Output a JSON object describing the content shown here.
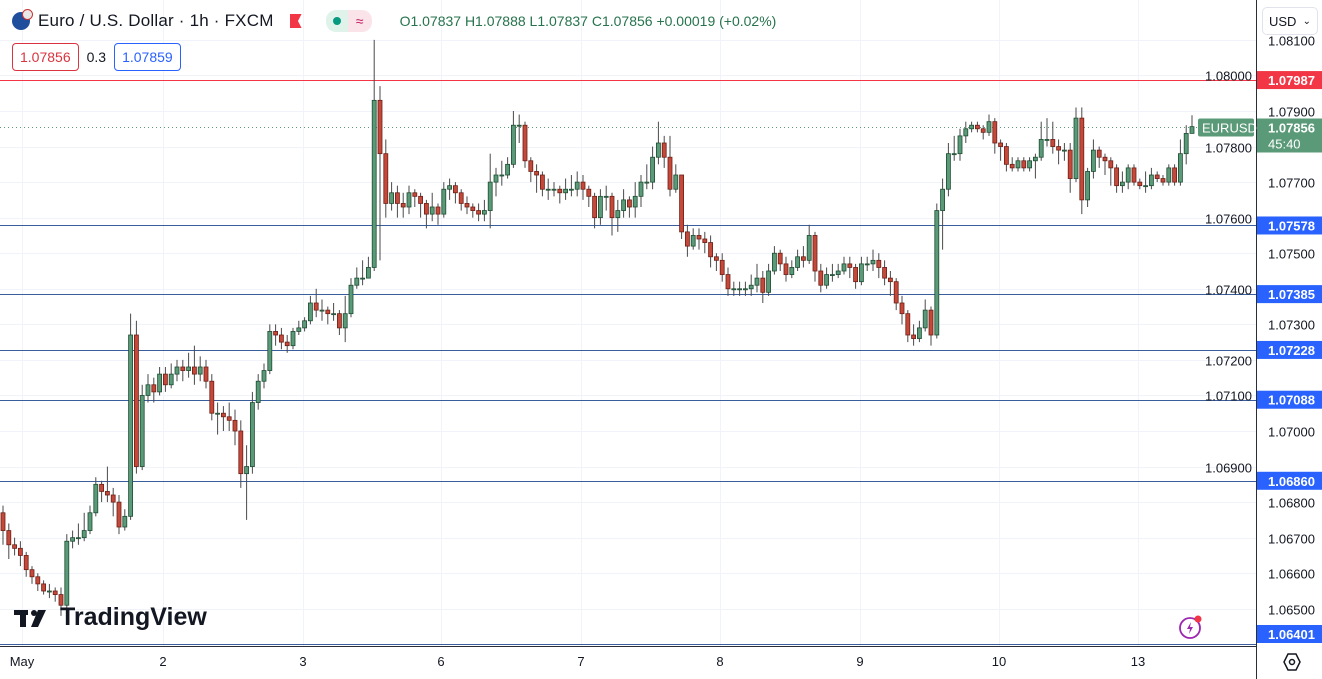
{
  "header": {
    "symbol_title": "Euro / U.S. Dollar · 1h · FXCM",
    "ohlc": "O1.07837 H1.07888 L1.07837 C1.07856 +0.00019 (+0.02%)",
    "market_status_icon": "market-open-dot",
    "indicator_icon": "approx-icon"
  },
  "quotes": {
    "sell": "1.07856",
    "spread": "0.3",
    "buy": "1.07859"
  },
  "currency_select": {
    "value": "USD"
  },
  "branding": {
    "logo_text": "TradingView"
  },
  "colors": {
    "up": "#5b9a78",
    "down": "#c4493a",
    "resistance": "#f23645",
    "support": "#2962ff",
    "last_price": "#5b9a78"
  },
  "chart_data": {
    "type": "candlestick",
    "symbol_label": "EURUSD",
    "last_price": "1.07856",
    "countdown": "45:40",
    "y_ticks": [
      "1.06500",
      "1.06600",
      "1.06700",
      "1.06800",
      "1.06900",
      "1.07000",
      "1.07100",
      "1.07200",
      "1.07300",
      "1.07400",
      "1.07500",
      "1.07600",
      "1.07700",
      "1.07800",
      "1.07900",
      "1.08000",
      "1.08100"
    ],
    "x_labels": [
      "May",
      "2",
      "3",
      "6",
      "7",
      "8",
      "9",
      "10",
      "13"
    ],
    "hlines": [
      {
        "price": "1.07987",
        "color": "#f23645"
      },
      {
        "price": "1.07578",
        "color": "#2962ff"
      },
      {
        "price": "1.07385",
        "color": "#2962ff"
      },
      {
        "price": "1.07228",
        "color": "#2962ff"
      },
      {
        "price": "1.07088",
        "color": "#2962ff"
      },
      {
        "price": "1.06860",
        "color": "#2962ff"
      },
      {
        "price": "1.06401",
        "color": "#2962ff"
      }
    ],
    "candles": [
      [
        1.0677,
        1.0679,
        1.0668,
        1.0672
      ],
      [
        1.0672,
        1.0674,
        1.0664,
        1.0668
      ],
      [
        1.0668,
        1.067,
        1.0665,
        1.0667
      ],
      [
        1.0667,
        1.0669,
        1.0662,
        1.0665
      ],
      [
        1.0665,
        1.0666,
        1.0659,
        1.0661
      ],
      [
        1.0661,
        1.0662,
        1.0657,
        1.0659
      ],
      [
        1.0659,
        1.066,
        1.0655,
        1.0657
      ],
      [
        1.0657,
        1.0658,
        1.0654,
        1.0655
      ],
      [
        1.0655,
        1.0657,
        1.0653,
        1.0655
      ],
      [
        1.0655,
        1.0656,
        1.0652,
        1.0654
      ],
      [
        1.0654,
        1.0656,
        1.0648,
        1.0651
      ],
      [
        1.0651,
        1.0671,
        1.065,
        1.0669
      ],
      [
        1.0669,
        1.0672,
        1.0667,
        1.067
      ],
      [
        1.067,
        1.0674,
        1.0668,
        1.067
      ],
      [
        1.067,
        1.0677,
        1.0669,
        1.0672
      ],
      [
        1.0672,
        1.0679,
        1.0671,
        1.0677
      ],
      [
        1.0677,
        1.0687,
        1.0676,
        1.0685
      ],
      [
        1.0685,
        1.0686,
        1.068,
        1.0683
      ],
      [
        1.0683,
        1.069,
        1.068,
        1.0682
      ],
      [
        1.0682,
        1.0684,
        1.0676,
        1.068
      ],
      [
        1.068,
        1.0682,
        1.0671,
        1.0673
      ],
      [
        1.0673,
        1.0678,
        1.0672,
        1.0676
      ],
      [
        1.0676,
        1.0733,
        1.0675,
        1.0727
      ],
      [
        1.0727,
        1.0731,
        1.0688,
        1.069
      ],
      [
        1.069,
        1.0713,
        1.0689,
        1.071
      ],
      [
        1.071,
        1.0716,
        1.0708,
        1.0713
      ],
      [
        1.0713,
        1.0715,
        1.0708,
        1.0711
      ],
      [
        1.0711,
        1.0718,
        1.071,
        1.0716
      ],
      [
        1.0716,
        1.0718,
        1.0711,
        1.0713
      ],
      [
        1.0713,
        1.0719,
        1.0712,
        1.0716
      ],
      [
        1.0716,
        1.072,
        1.0714,
        1.0718
      ],
      [
        1.0718,
        1.072,
        1.0714,
        1.0717
      ],
      [
        1.0717,
        1.0722,
        1.0715,
        1.0718
      ],
      [
        1.0718,
        1.0724,
        1.0713,
        1.0716
      ],
      [
        1.0716,
        1.0721,
        1.0714,
        1.0718
      ],
      [
        1.0718,
        1.072,
        1.0712,
        1.0714
      ],
      [
        1.0714,
        1.0716,
        1.0703,
        1.0705
      ],
      [
        1.0705,
        1.0708,
        1.0699,
        1.0705
      ],
      [
        1.0705,
        1.0707,
        1.07,
        1.0704
      ],
      [
        1.0704,
        1.0708,
        1.07,
        1.0703
      ],
      [
        1.0703,
        1.0706,
        1.0696,
        1.07
      ],
      [
        1.07,
        1.0703,
        1.0684,
        1.0688
      ],
      [
        1.0688,
        1.0696,
        1.0675,
        1.069
      ],
      [
        1.069,
        1.0711,
        1.0688,
        1.0708
      ],
      [
        1.0708,
        1.0716,
        1.0706,
        1.0714
      ],
      [
        1.0714,
        1.0719,
        1.0712,
        1.0717
      ],
      [
        1.0717,
        1.073,
        1.0716,
        1.0728
      ],
      [
        1.0728,
        1.073,
        1.0724,
        1.0727
      ],
      [
        1.0727,
        1.0729,
        1.0723,
        1.0725
      ],
      [
        1.0725,
        1.0727,
        1.0722,
        1.0724
      ],
      [
        1.0724,
        1.0729,
        1.0723,
        1.0728
      ],
      [
        1.0728,
        1.0731,
        1.0727,
        1.0729
      ],
      [
        1.0729,
        1.0732,
        1.0728,
        1.0731
      ],
      [
        1.0731,
        1.0738,
        1.073,
        1.0736
      ],
      [
        1.0736,
        1.074,
        1.0732,
        1.0734
      ],
      [
        1.0734,
        1.0737,
        1.0731,
        1.0734
      ],
      [
        1.0734,
        1.0735,
        1.073,
        1.0733
      ],
      [
        1.0733,
        1.0736,
        1.0731,
        1.0733
      ],
      [
        1.0733,
        1.0734,
        1.0727,
        1.0729
      ],
      [
        1.0729,
        1.0738,
        1.0725,
        1.0733
      ],
      [
        1.0733,
        1.0743,
        1.0732,
        1.0741
      ],
      [
        1.0741,
        1.0746,
        1.074,
        1.0743
      ],
      [
        1.0743,
        1.0748,
        1.0741,
        1.0743
      ],
      [
        1.0743,
        1.0749,
        1.0744,
        1.0746
      ],
      [
        1.0746,
        1.081,
        1.0745,
        1.0793
      ],
      [
        1.0793,
        1.0797,
        1.0748,
        1.0778
      ],
      [
        1.0778,
        1.0782,
        1.076,
        1.0764
      ],
      [
        1.0764,
        1.077,
        1.0762,
        1.0767
      ],
      [
        1.0767,
        1.0769,
        1.076,
        1.0764
      ],
      [
        1.0764,
        1.0767,
        1.076,
        1.0763
      ],
      [
        1.0763,
        1.0769,
        1.0761,
        1.0767
      ],
      [
        1.0767,
        1.0768,
        1.0763,
        1.0766
      ],
      [
        1.0766,
        1.0767,
        1.076,
        1.0764
      ],
      [
        1.0764,
        1.0765,
        1.0757,
        1.0761
      ],
      [
        1.0761,
        1.0767,
        1.0759,
        1.0763
      ],
      [
        1.0763,
        1.0764,
        1.0758,
        1.0761
      ],
      [
        1.0761,
        1.077,
        1.076,
        1.0768
      ],
      [
        1.0768,
        1.0771,
        1.0765,
        1.0769
      ],
      [
        1.0769,
        1.077,
        1.0764,
        1.0767
      ],
      [
        1.0767,
        1.0768,
        1.0762,
        1.0764
      ],
      [
        1.0764,
        1.0766,
        1.0761,
        1.0763
      ],
      [
        1.0763,
        1.0764,
        1.076,
        1.0762
      ],
      [
        1.0762,
        1.0764,
        1.0759,
        1.0761
      ],
      [
        1.0761,
        1.0765,
        1.0759,
        1.0762
      ],
      [
        1.0762,
        1.0778,
        1.0757,
        1.077
      ],
      [
        1.077,
        1.0774,
        1.0766,
        1.0772
      ],
      [
        1.0772,
        1.0776,
        1.0769,
        1.0772
      ],
      [
        1.0772,
        1.0777,
        1.0771,
        1.0775
      ],
      [
        1.0775,
        1.079,
        1.0774,
        1.0786
      ],
      [
        1.0786,
        1.0789,
        1.0781,
        1.0786
      ],
      [
        1.0786,
        1.0787,
        1.0774,
        1.0776
      ],
      [
        1.0776,
        1.0777,
        1.077,
        1.0773
      ],
      [
        1.0773,
        1.0775,
        1.0767,
        1.0772
      ],
      [
        1.0772,
        1.0773,
        1.0766,
        1.0768
      ],
      [
        1.0768,
        1.0771,
        1.0765,
        1.0768
      ],
      [
        1.0768,
        1.077,
        1.0766,
        1.0768
      ],
      [
        1.0768,
        1.0769,
        1.0764,
        1.0767
      ],
      [
        1.0767,
        1.0771,
        1.0765,
        1.0768
      ],
      [
        1.0768,
        1.0772,
        1.0766,
        1.0768
      ],
      [
        1.0768,
        1.0773,
        1.0766,
        1.077
      ],
      [
        1.077,
        1.0772,
        1.0765,
        1.0768
      ],
      [
        1.0768,
        1.0769,
        1.0763,
        1.0766
      ],
      [
        1.0766,
        1.0767,
        1.0757,
        1.076
      ],
      [
        1.076,
        1.0768,
        1.0758,
        1.0766
      ],
      [
        1.0766,
        1.0769,
        1.0762,
        1.0766
      ],
      [
        1.0766,
        1.0767,
        1.0755,
        1.076
      ],
      [
        1.076,
        1.0765,
        1.0756,
        1.0762
      ],
      [
        1.0762,
        1.0768,
        1.076,
        1.0765
      ],
      [
        1.0765,
        1.0766,
        1.076,
        1.0763
      ],
      [
        1.0763,
        1.077,
        1.076,
        1.0766
      ],
      [
        1.0766,
        1.0772,
        1.0763,
        1.077
      ],
      [
        1.077,
        1.0775,
        1.0768,
        1.077
      ],
      [
        1.077,
        1.078,
        1.0768,
        1.0777
      ],
      [
        1.0777,
        1.0787,
        1.0775,
        1.0781
      ],
      [
        1.0781,
        1.0783,
        1.0774,
        1.0777
      ],
      [
        1.0777,
        1.0783,
        1.0766,
        1.0768
      ],
      [
        1.0768,
        1.0775,
        1.0767,
        1.0772
      ],
      [
        1.0772,
        1.0772,
        1.0754,
        1.0756
      ],
      [
        1.0756,
        1.0758,
        1.0749,
        1.0752
      ],
      [
        1.0752,
        1.0757,
        1.0751,
        1.0755
      ],
      [
        1.0755,
        1.0757,
        1.0751,
        1.0754
      ],
      [
        1.0754,
        1.0756,
        1.075,
        1.0753
      ],
      [
        1.0753,
        1.0755,
        1.0746,
        1.0749
      ],
      [
        1.0749,
        1.075,
        1.0745,
        1.0748
      ],
      [
        1.0748,
        1.075,
        1.0742,
        1.0744
      ],
      [
        1.0744,
        1.0746,
        1.0738,
        1.074
      ],
      [
        1.074,
        1.0742,
        1.0738,
        1.074
      ],
      [
        1.074,
        1.0742,
        1.0738,
        1.074
      ],
      [
        1.074,
        1.0742,
        1.0738,
        1.074
      ],
      [
        1.074,
        1.0744,
        1.0738,
        1.0741
      ],
      [
        1.0741,
        1.0747,
        1.0739,
        1.0743
      ],
      [
        1.0743,
        1.0745,
        1.0736,
        1.0739
      ],
      [
        1.0739,
        1.0747,
        1.0738,
        1.0745
      ],
      [
        1.0745,
        1.0752,
        1.0744,
        1.075
      ],
      [
        1.075,
        1.0751,
        1.0745,
        1.0747
      ],
      [
        1.0747,
        1.0749,
        1.0742,
        1.0744
      ],
      [
        1.0744,
        1.0748,
        1.0743,
        1.0746
      ],
      [
        1.0746,
        1.0751,
        1.0745,
        1.0749
      ],
      [
        1.0749,
        1.0752,
        1.0746,
        1.0748
      ],
      [
        1.0748,
        1.0758,
        1.0747,
        1.0755
      ],
      [
        1.0755,
        1.0756,
        1.0742,
        1.0745
      ],
      [
        1.0745,
        1.0747,
        1.0739,
        1.0741
      ],
      [
        1.0741,
        1.0746,
        1.074,
        1.0744
      ],
      [
        1.0744,
        1.0747,
        1.0742,
        1.0744
      ],
      [
        1.0744,
        1.0747,
        1.0743,
        1.0745
      ],
      [
        1.0745,
        1.0749,
        1.0744,
        1.0747
      ],
      [
        1.0747,
        1.0749,
        1.0743,
        1.0746
      ],
      [
        1.0746,
        1.0747,
        1.074,
        1.0742
      ],
      [
        1.0742,
        1.0749,
        1.0741,
        1.0747
      ],
      [
        1.0747,
        1.0749,
        1.0745,
        1.0747
      ],
      [
        1.0747,
        1.0751,
        1.0745,
        1.0748
      ],
      [
        1.0748,
        1.075,
        1.0743,
        1.0746
      ],
      [
        1.0746,
        1.0748,
        1.0741,
        1.0743
      ],
      [
        1.0743,
        1.0745,
        1.0738,
        1.0742
      ],
      [
        1.0742,
        1.0743,
        1.0734,
        1.0736
      ],
      [
        1.0736,
        1.0738,
        1.073,
        1.0733
      ],
      [
        1.0733,
        1.0734,
        1.0725,
        1.0727
      ],
      [
        1.0727,
        1.073,
        1.0724,
        1.0726
      ],
      [
        1.0726,
        1.0731,
        1.0725,
        1.0729
      ],
      [
        1.0729,
        1.0737,
        1.0728,
        1.0734
      ],
      [
        1.0734,
        1.0735,
        1.0724,
        1.0727
      ],
      [
        1.0727,
        1.0764,
        1.0726,
        1.0762
      ],
      [
        1.0762,
        1.0771,
        1.0751,
        1.0768
      ],
      [
        1.0768,
        1.0781,
        1.0766,
        1.0778
      ],
      [
        1.0778,
        1.0783,
        1.0776,
        1.0778
      ],
      [
        1.0778,
        1.0785,
        1.0776,
        1.0783
      ],
      [
        1.0783,
        1.0787,
        1.0781,
        1.0785
      ],
      [
        1.0785,
        1.0787,
        1.0784,
        1.0786
      ],
      [
        1.0786,
        1.0787,
        1.0784,
        1.0785
      ],
      [
        1.0785,
        1.0786,
        1.0782,
        1.0784
      ],
      [
        1.0784,
        1.0789,
        1.0783,
        1.0787
      ],
      [
        1.0787,
        1.0788,
        1.0778,
        1.0781
      ],
      [
        1.0781,
        1.0782,
        1.0776,
        1.078
      ],
      [
        1.078,
        1.0781,
        1.0773,
        1.0775
      ],
      [
        1.0775,
        1.0777,
        1.0773,
        1.0774
      ],
      [
        1.0774,
        1.0777,
        1.0773,
        1.0776
      ],
      [
        1.0776,
        1.0777,
        1.0773,
        1.0774
      ],
      [
        1.0774,
        1.0777,
        1.0773,
        1.0776
      ],
      [
        1.0776,
        1.0778,
        1.0771,
        1.0777
      ],
      [
        1.0777,
        1.0787,
        1.0776,
        1.0782
      ],
      [
        1.0782,
        1.0788,
        1.078,
        1.0782
      ],
      [
        1.0782,
        1.0787,
        1.0778,
        1.078
      ],
      [
        1.078,
        1.0782,
        1.0775,
        1.0779
      ],
      [
        1.0779,
        1.0781,
        1.0776,
        1.0779
      ],
      [
        1.0779,
        1.0781,
        1.0767,
        1.0771
      ],
      [
        1.0771,
        1.0791,
        1.077,
        1.0788
      ],
      [
        1.0788,
        1.0791,
        1.0761,
        1.0765
      ],
      [
        1.0765,
        1.0774,
        1.0763,
        1.0773
      ],
      [
        1.0773,
        1.0782,
        1.0771,
        1.0779
      ],
      [
        1.0779,
        1.078,
        1.0774,
        1.0777
      ],
      [
        1.0777,
        1.0778,
        1.0772,
        1.0776
      ],
      [
        1.0776,
        1.0777,
        1.0769,
        1.0774
      ],
      [
        1.0774,
        1.0775,
        1.0767,
        1.0769
      ],
      [
        1.0769,
        1.0773,
        1.0767,
        1.077
      ],
      [
        1.077,
        1.0775,
        1.0768,
        1.0774
      ],
      [
        1.0774,
        1.0775,
        1.0769,
        1.077
      ],
      [
        1.077,
        1.0771,
        1.0768,
        1.0769
      ],
      [
        1.0769,
        1.0773,
        1.0767,
        1.0769
      ],
      [
        1.0769,
        1.0774,
        1.0768,
        1.0772
      ],
      [
        1.0772,
        1.0773,
        1.077,
        1.0771
      ],
      [
        1.0771,
        1.0772,
        1.0769,
        1.077
      ],
      [
        1.077,
        1.0775,
        1.0769,
        1.0774
      ],
      [
        1.0774,
        1.0775,
        1.0769,
        1.077
      ],
      [
        1.077,
        1.0782,
        1.0769,
        1.0778
      ],
      [
        1.0778,
        1.0786,
        1.0775,
        1.07837
      ],
      [
        1.07837,
        1.07888,
        1.07837,
        1.07856
      ]
    ]
  }
}
